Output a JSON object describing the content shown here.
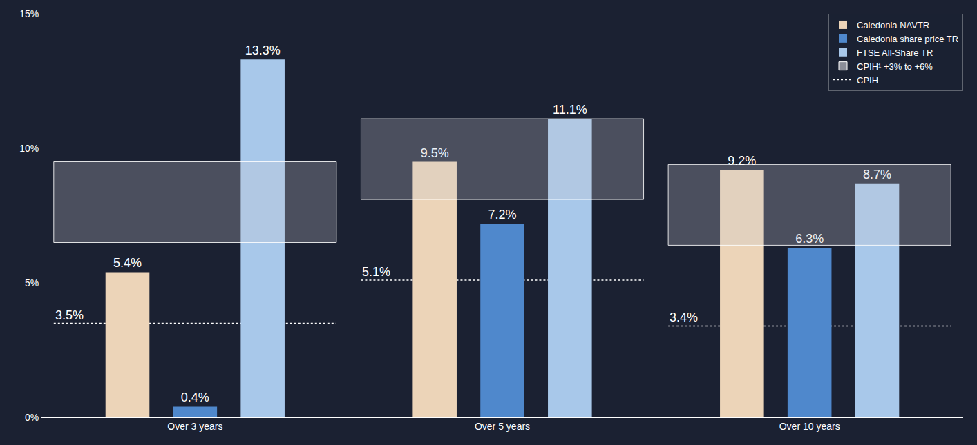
{
  "chart_data": {
    "type": "bar",
    "categories": [
      "Over 3 years",
      "Over 5 years",
      "Over 10 years"
    ],
    "series": [
      {
        "name": "Caledonia NAVTR",
        "color": "#ecd4b8",
        "values": [
          5.4,
          9.5,
          9.2
        ],
        "value_labels": [
          "5.4%",
          "9.5%",
          "9.2%"
        ]
      },
      {
        "name": "Caledonia share price TR",
        "color": "#4f88cc",
        "values": [
          0.4,
          7.2,
          6.3
        ],
        "value_labels": [
          "0.4%",
          "7.2%",
          "6.3%"
        ]
      },
      {
        "name": "FTSE All-Share TR",
        "color": "#a8c8ea",
        "values": [
          13.3,
          11.1,
          8.7
        ],
        "value_labels": [
          "13.3%",
          "11.1%",
          "8.7%"
        ]
      }
    ],
    "cpih_band": {
      "name": "CPIH¹ +3% to +6%",
      "color": "#8a8d98",
      "lower": [
        6.5,
        8.1,
        6.4
      ],
      "upper": [
        9.5,
        11.1,
        9.4
      ]
    },
    "cpih": {
      "name": "CPIH",
      "color": "#ffffff",
      "line_style": "dotted",
      "values": [
        3.5,
        5.1,
        3.4
      ],
      "value_labels": [
        "3.5%",
        "5.1%",
        "3.4%"
      ]
    },
    "ylim": [
      0,
      15
    ],
    "yticks": [
      {
        "value": 0,
        "label": "0%"
      },
      {
        "value": 5,
        "label": "5%"
      },
      {
        "value": 10,
        "label": "10%"
      },
      {
        "value": 15,
        "label": "15%"
      }
    ],
    "grid": false,
    "data_labels": true,
    "legend": "top right"
  }
}
